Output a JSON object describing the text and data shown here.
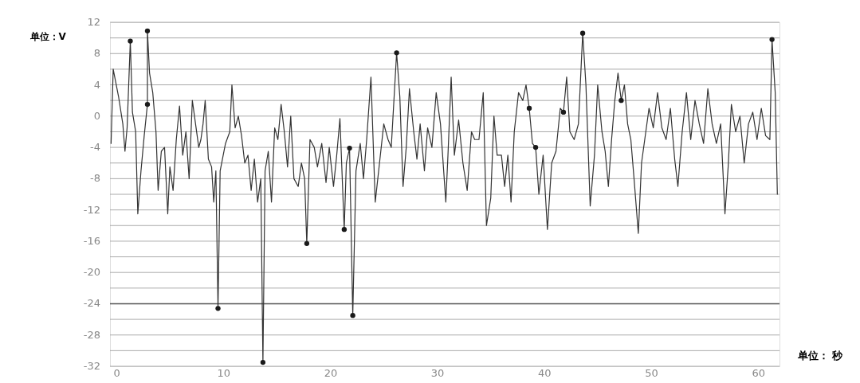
{
  "chart_data": {
    "type": "line",
    "xlabel": "单位： 秒",
    "ylabel": "单位：V",
    "xlim": [
      -0.6,
      62
    ],
    "xticks": [
      0,
      10,
      20,
      30,
      40,
      50,
      60
    ],
    "ylim": [
      -32,
      12
    ],
    "yticks": [
      {
        "value": -32,
        "label": "-32"
      },
      {
        "value": -30,
        "label": null
      },
      {
        "value": -28,
        "label": "-28"
      },
      {
        "value": -26,
        "label": null
      },
      {
        "value": -24,
        "label": "-24"
      },
      {
        "value": -22,
        "label": null
      },
      {
        "value": -20,
        "label": "-20"
      },
      {
        "value": -18,
        "label": null
      },
      {
        "value": -16,
        "label": "-16"
      },
      {
        "value": -14,
        "label": null
      },
      {
        "value": -12,
        "label": "-12"
      },
      {
        "value": -10,
        "label": null
      },
      {
        "value": -8,
        "label": "-8"
      },
      {
        "value": -6,
        "label": null
      },
      {
        "value": -4,
        "label": "-4"
      },
      {
        "value": -2,
        "label": null
      },
      {
        "value": 0,
        "label": "0"
      },
      {
        "value": 2,
        "label": null
      },
      {
        "value": 4,
        "label": "4"
      },
      {
        "value": 6,
        "label": null
      },
      {
        "value": 8,
        "label": "8"
      },
      {
        "value": 10,
        "label": null
      },
      {
        "value": 12,
        "label": "12"
      }
    ],
    "grid": "y",
    "line_style": "solid",
    "ref_lines": [
      {
        "axis": "y",
        "value": -24,
        "color": "#555555"
      }
    ],
    "series": [
      {
        "type": "line",
        "color": "#333333",
        "x": [
          -0.5,
          -0.3,
          0.2,
          0.6,
          0.8,
          1.0,
          1.3,
          1.5,
          1.8,
          2.0,
          2.3,
          2.6,
          2.9,
          2.9,
          3.1,
          3.4,
          3.7,
          3.9,
          4.2,
          4.5,
          4.8,
          5.0,
          5.3,
          5.6,
          5.9,
          6.2,
          6.5,
          6.8,
          7.1,
          7.4,
          7.7,
          7.9,
          8.1,
          8.3,
          8.6,
          8.9,
          9.1,
          9.3,
          9.5,
          9.7,
          10.2,
          10.6,
          10.8,
          11.1,
          11.4,
          11.7,
          12.0,
          12.3,
          12.6,
          12.9,
          13.2,
          13.5,
          13.7,
          13.9,
          14.2,
          14.5,
          14.8,
          15.1,
          15.4,
          15.7,
          16.0,
          16.3,
          16.6,
          17.0,
          17.3,
          17.6,
          17.8,
          18.1,
          18.5,
          18.8,
          19.2,
          19.6,
          19.9,
          20.3,
          20.6,
          20.9,
          21.3,
          21.5,
          21.8,
          22.1,
          22.4,
          22.8,
          23.1,
          23.4,
          23.8,
          24.2,
          24.6,
          25.0,
          25.4,
          25.7,
          26.2,
          26.5,
          26.8,
          27.1,
          27.4,
          27.8,
          28.1,
          28.4,
          28.8,
          29.1,
          29.5,
          29.9,
          30.3,
          30.8,
          31.0,
          31.3,
          31.6,
          32.0,
          32.4,
          32.8,
          33.2,
          33.5,
          33.9,
          34.3,
          34.6,
          35.0,
          35.3,
          35.6,
          36.0,
          36.3,
          36.6,
          36.9,
          37.2,
          37.6,
          38.0,
          38.3,
          38.6,
          38.9,
          39.2,
          39.5,
          39.9,
          40.3,
          40.7,
          41.1,
          41.5,
          41.8,
          42.1,
          42.4,
          42.8,
          43.2,
          43.6,
          43.9,
          44.3,
          44.7,
          45.0,
          45.4,
          45.7,
          46.0,
          46.3,
          46.6,
          46.9,
          47.2,
          47.5,
          47.8,
          48.1,
          48.4,
          48.8,
          49.1,
          49.4,
          49.8,
          50.2,
          50.6,
          51.0,
          51.4,
          51.8,
          52.2,
          52.5,
          52.9,
          53.3,
          53.7,
          54.1,
          54.5,
          54.9,
          55.3,
          55.7,
          56.1,
          56.5,
          56.9,
          57.2,
          57.5,
          57.9,
          58.3,
          58.7,
          59.1,
          59.5,
          59.9,
          60.3,
          60.7,
          61.1,
          61.3,
          61.6,
          61.8
        ],
        "values": [
          -3.5,
          6.0,
          2.5,
          -1,
          -4.5,
          -1.5,
          9.6,
          0.5,
          -2,
          -12.5,
          -7,
          -2.5,
          1.5,
          10.9,
          5.5,
          3,
          -2,
          -9.5,
          -4.5,
          -4,
          -12.5,
          -6.5,
          -9.5,
          -3,
          1.3,
          -5,
          -2,
          -8,
          2,
          -1,
          -4,
          -3,
          -1,
          2,
          -5.5,
          -6.5,
          -11,
          -7,
          -24.6,
          -7,
          -3.5,
          -2,
          4,
          -1.5,
          0,
          -2.5,
          -6,
          -5,
          -9.5,
          -5.5,
          -11,
          -8,
          -31.5,
          -7,
          -4.5,
          -11,
          -1.5,
          -3,
          1.5,
          -2,
          -6.5,
          0,
          -8,
          -9,
          -6,
          -8,
          -16.3,
          -3,
          -4,
          -6.5,
          -3.5,
          -8.5,
          -4,
          -9,
          -5,
          -0.3,
          -14.5,
          -6,
          -4.1,
          -25.5,
          -7,
          -3.5,
          -8,
          -3,
          5,
          -11,
          -6,
          -1,
          -3,
          -4,
          8.1,
          2.5,
          -9,
          -4,
          3.5,
          -2,
          -5.5,
          -1,
          -7,
          -1.5,
          -4,
          3,
          -1,
          -11,
          -5,
          5,
          -5,
          -0.5,
          -6,
          -9.5,
          -2,
          -3,
          -3,
          3,
          -14,
          -10.5,
          0,
          -5,
          -5,
          -9,
          -5,
          -11,
          -2,
          3,
          2,
          4,
          1,
          -3.5,
          -4,
          -10,
          -5,
          -14.5,
          -6,
          -4.5,
          1,
          0.5,
          5,
          -2,
          -3,
          -1,
          10.6,
          4,
          -11.5,
          -5,
          4,
          -2,
          -4.5,
          -9,
          -3,
          2,
          5.5,
          2,
          4,
          -1,
          -3,
          -8,
          -15,
          -6,
          -3,
          1,
          -1.5,
          3,
          -1.5,
          -3,
          1,
          -5.5,
          -9,
          -2,
          3,
          -3,
          2,
          -1,
          -3.5,
          3.5,
          -1,
          -3.5,
          -1,
          -12.5,
          -6.5,
          1.5,
          -2,
          0,
          -6,
          -1,
          0.5,
          -3,
          1,
          -2.5,
          -3,
          9.8,
          3,
          -10
        ]
      },
      {
        "type": "scatter",
        "color": "#1a1a1a",
        "marker": "circle",
        "x": [
          1.3,
          2.9,
          2.9,
          9.5,
          13.7,
          17.8,
          21.3,
          21.8,
          22.1,
          26.2,
          38.6,
          39.2,
          41.8,
          43.6,
          47.2,
          61.3
        ],
        "values": [
          9.6,
          10.9,
          1.5,
          -24.6,
          -31.5,
          -16.3,
          -14.5,
          -4.1,
          -25.5,
          8.1,
          1,
          -4,
          0.5,
          10.6,
          2,
          9.8
        ]
      }
    ]
  }
}
